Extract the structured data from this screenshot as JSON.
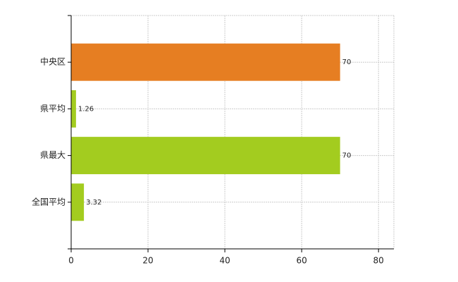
{
  "chart_data": {
    "type": "hbar",
    "categories": [
      "中央区",
      "県平均",
      "県最大",
      "全国平均"
    ],
    "values": [
      70,
      1.26,
      70,
      3.32
    ],
    "colors": [
      "#e67e22",
      "#a3cc1f",
      "#a3cc1f",
      "#a3cc1f"
    ],
    "xlim": [
      0,
      84
    ],
    "xticks": [
      0,
      20,
      40,
      60,
      80
    ],
    "grid": true
  }
}
